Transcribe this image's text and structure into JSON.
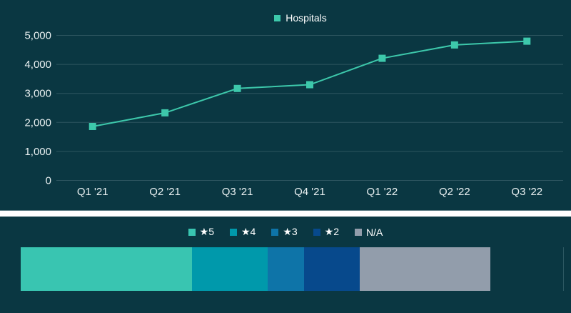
{
  "colors": {
    "background": "#0a3742",
    "divider": "#ffffff",
    "gridline": "#2d555f",
    "axis_text": "#e9f0f1",
    "line": "#3dc8ab"
  },
  "chart_data": [
    {
      "type": "line",
      "title": "",
      "categories": [
        "Q1 '21",
        "Q2 '21",
        "Q3 '21",
        "Q4 '21",
        "Q1 '22",
        "Q2 '22",
        "Q3 '22"
      ],
      "series": [
        {
          "name": "Hospitals",
          "color": "#3dc8ab",
          "values": [
            1860,
            2330,
            3170,
            3300,
            4210,
            4670,
            4800
          ]
        }
      ],
      "ylim": [
        0,
        5000
      ],
      "y_ticks": [
        0,
        1000,
        2000,
        3000,
        4000,
        5000
      ],
      "y_tick_labels": [
        "0",
        "1,000",
        "2,000",
        "3,000",
        "4,000",
        "5,000"
      ],
      "grid": true,
      "legend_position": "top"
    },
    {
      "type": "bar",
      "subtype": "stacked-horizontal",
      "legend_position": "top",
      "segments": [
        {
          "label": "★5",
          "value": 36.5,
          "color": "#39c5b1"
        },
        {
          "label": "★4",
          "value": 16.1,
          "color": "#0099ab"
        },
        {
          "label": "★3",
          "value": 7.8,
          "color": "#0e74a8"
        },
        {
          "label": "★2",
          "value": 11.9,
          "color": "#07498c"
        },
        {
          "label": "N/A",
          "value": 27.8,
          "color": "#929dab"
        }
      ]
    }
  ]
}
